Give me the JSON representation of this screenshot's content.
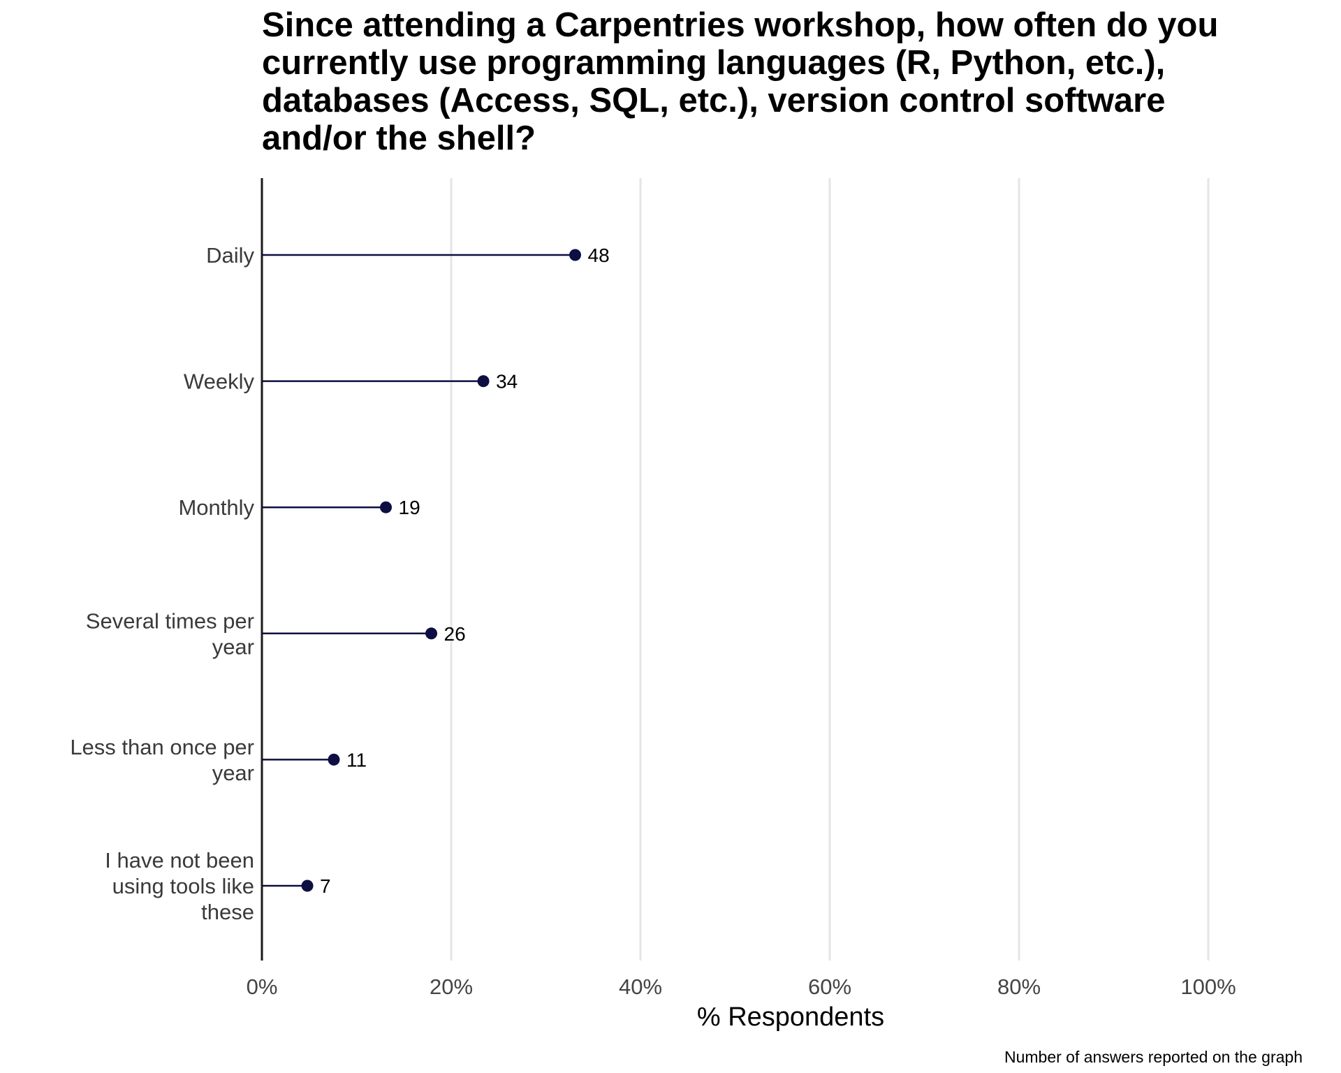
{
  "chart_data": {
    "type": "lollipop",
    "orientation": "horizontal",
    "title_lines": [
      "Since attending a Carpentries workshop, how often do you",
      "currently use programming languages (R, Python, etc.),",
      "databases (Access, SQL, etc.), version control software",
      "and/or the shell?"
    ],
    "categories": [
      [
        "Daily"
      ],
      [
        "Weekly"
      ],
      [
        "Monthly"
      ],
      [
        "Several times per",
        "year"
      ],
      [
        "Less than once per",
        "year"
      ],
      [
        "I have not been",
        "using tools like",
        "these"
      ]
    ],
    "values_percent": [
      33.1,
      23.4,
      13.1,
      17.9,
      7.6,
      4.8
    ],
    "counts": [
      "48",
      "34",
      "19",
      "26",
      "11",
      "7"
    ],
    "xlabel": "% Respondents",
    "xlim": [
      0,
      100
    ],
    "xticks": [
      0,
      20,
      40,
      60,
      80,
      100
    ],
    "xtick_labels": [
      "0%",
      "20%",
      "40%",
      "60%",
      "80%",
      "100%"
    ],
    "caption": "Number of answers reported on the graph",
    "grid": "vertical-major",
    "colors": {
      "series": "#0d0f42",
      "grid": "#e5e5e5",
      "axis": "#1a1a1a",
      "background": "#ffffff"
    }
  }
}
